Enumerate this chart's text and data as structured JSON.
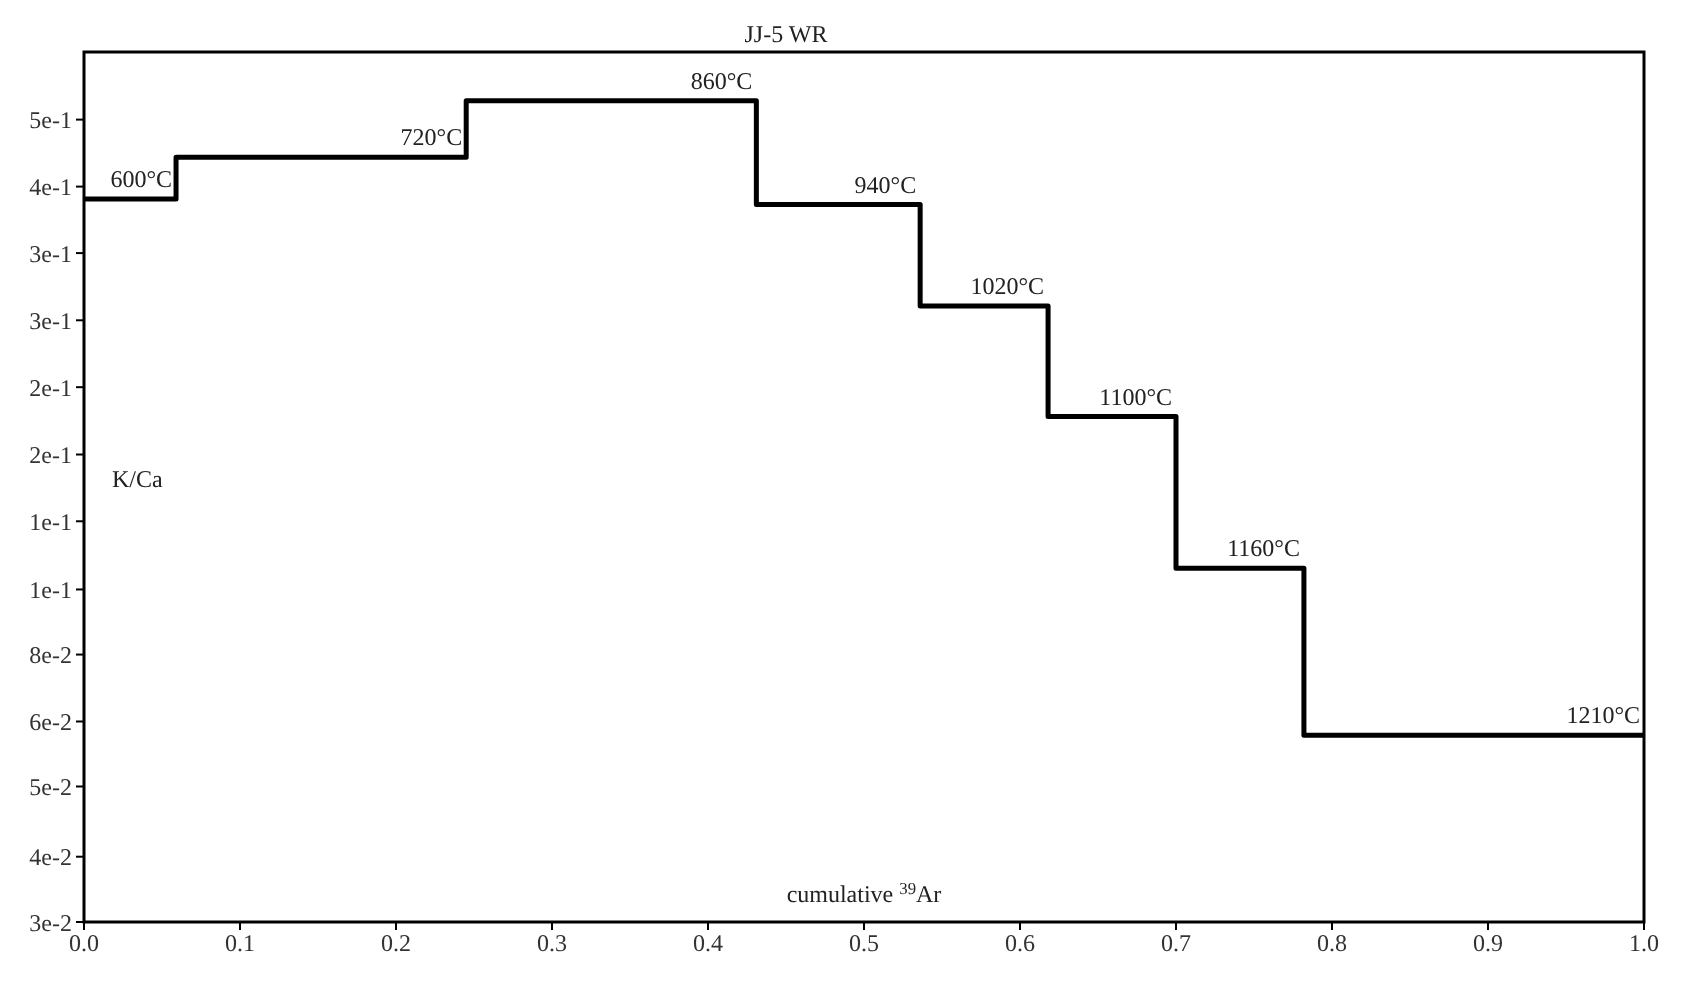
{
  "chart_data": {
    "type": "step",
    "title": "JJ-5 WR",
    "xlabel": "cumulative $^{39}$Ar",
    "ylabel": "K/Ca",
    "x": [
      0,
      0.059,
      0.245,
      0.431,
      0.536,
      0.618,
      0.7,
      0.782,
      1.0
    ],
    "series": [
      {
        "color": "#000000",
        "values": [
          0.411,
          0.478,
          0.587,
          0.403,
          0.279,
          0.187,
          0.108,
          0.059,
          0.059
        ]
      }
    ],
    "log": "y",
    "xlim": [
      0,
      1
    ],
    "ylim": [
      0.03,
      0.7
    ],
    "xticks": [
      {
        "value": 0,
        "label": "0.0"
      },
      0.1,
      0.2,
      0.3,
      0.4,
      0.5,
      0.6,
      0.7,
      0.8,
      0.9,
      {
        "value": 1,
        "label": "1.0"
      }
    ],
    "yticks": [
      {
        "value": 0.03,
        "label": "3e-2"
      },
      {
        "value": 0.038,
        "label": "4e-2"
      },
      {
        "value": 0.049,
        "label": "5e-2"
      },
      {
        "value": 0.062,
        "label": "6e-2"
      },
      {
        "value": 0.079,
        "label": "8e-2"
      },
      {
        "value": 0.1,
        "label": "1e-1"
      },
      {
        "value": 0.128,
        "label": "1e-1"
      },
      {
        "value": 0.163,
        "label": "2e-1"
      },
      {
        "value": 0.208,
        "label": "2e-1"
      },
      {
        "value": 0.265,
        "label": "3e-1"
      },
      {
        "value": 0.338,
        "label": "3e-1"
      },
      {
        "value": 0.43,
        "label": "4e-1"
      },
      {
        "value": 0.548,
        "label": "5e-1"
      }
    ],
    "annotations": [
      {
        "text": "600°C",
        "x": 0.059,
        "y": 0.411
      },
      {
        "text": "720°C",
        "x": 0.245,
        "y": 0.478
      },
      {
        "text": "860°C",
        "x": 0.431,
        "y": 0.587
      },
      {
        "text": "940°C",
        "x": 0.536,
        "y": 0.403
      },
      {
        "text": "1020°C",
        "x": 0.618,
        "y": 0.279
      },
      {
        "text": "1100°C",
        "x": 0.7,
        "y": 0.187
      },
      {
        "text": "1160°C",
        "x": 0.782,
        "y": 0.108
      },
      {
        "text": "1210°C",
        "x": 1.0,
        "y": 0.059
      }
    ]
  }
}
